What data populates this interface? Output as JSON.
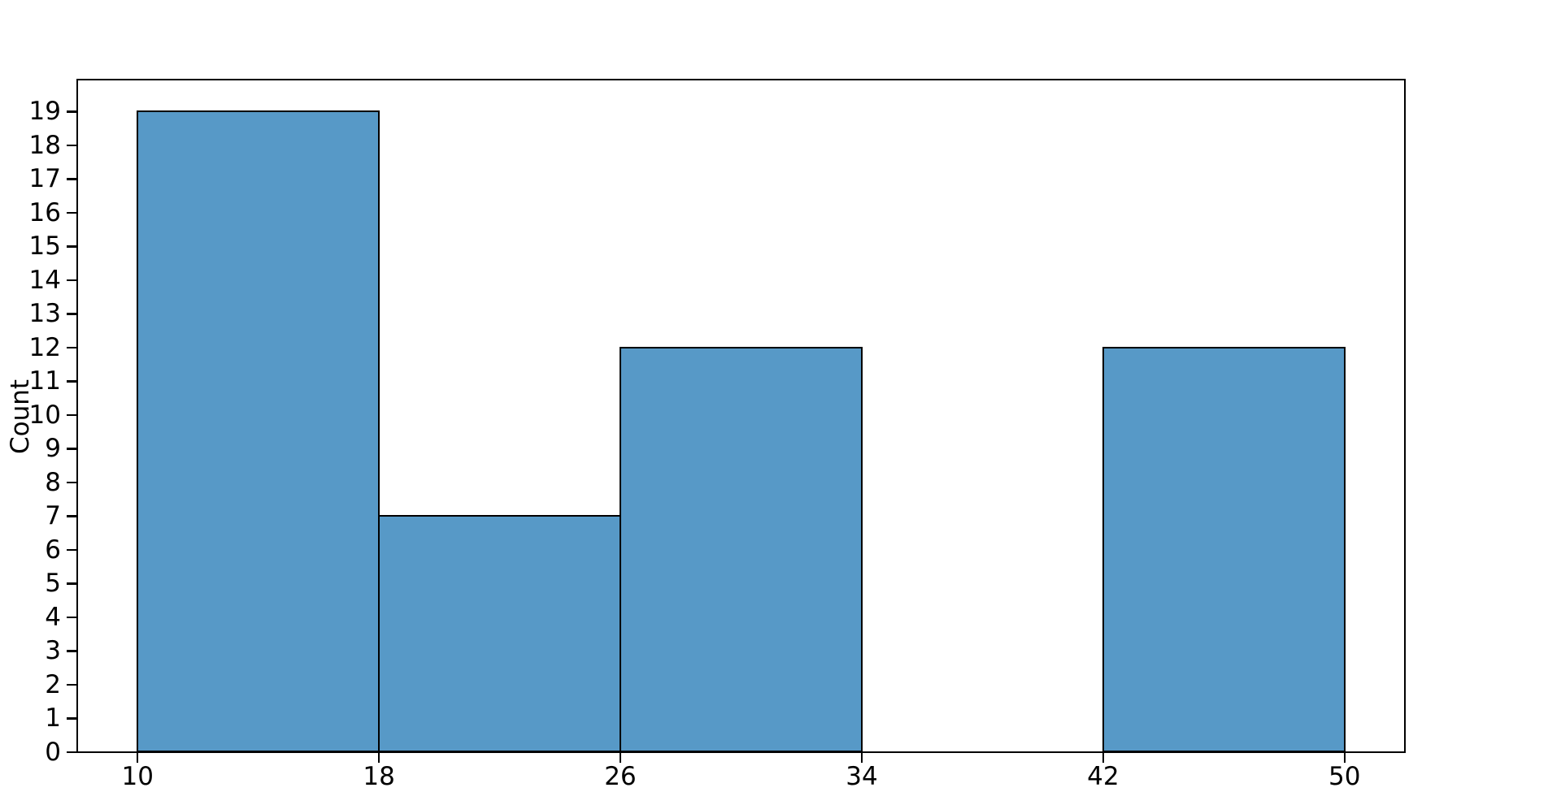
{
  "chart_data": {
    "type": "bar",
    "subtype": "histogram",
    "title": "",
    "xlabel": "",
    "ylabel": "Count",
    "bin_edges": [
      10,
      18,
      26,
      34,
      42,
      50
    ],
    "counts": [
      19,
      7,
      12,
      0,
      12
    ],
    "x_tick_values": [
      10,
      18,
      26,
      34,
      42,
      50
    ],
    "x_tick_labels": [
      "10",
      "18",
      "26",
      "34",
      "42",
      "50"
    ],
    "y_tick_values": [
      0,
      1,
      2,
      3,
      4,
      5,
      6,
      7,
      8,
      9,
      10,
      11,
      12,
      13,
      14,
      15,
      16,
      17,
      18,
      19
    ],
    "y_tick_labels": [
      "0",
      "1",
      "2",
      "3",
      "4",
      "5",
      "6",
      "7",
      "8",
      "9",
      "10",
      "11",
      "12",
      "13",
      "14",
      "15",
      "16",
      "17",
      "18",
      "19"
    ],
    "xlim": [
      8,
      52
    ],
    "ylim": [
      0,
      19.95
    ],
    "grid": false,
    "legend": "none",
    "colors": {
      "bar_fill": "#5799c7",
      "bar_edge": "#000000",
      "axis": "#000000",
      "background": "#ffffff",
      "text": "#000000"
    }
  }
}
